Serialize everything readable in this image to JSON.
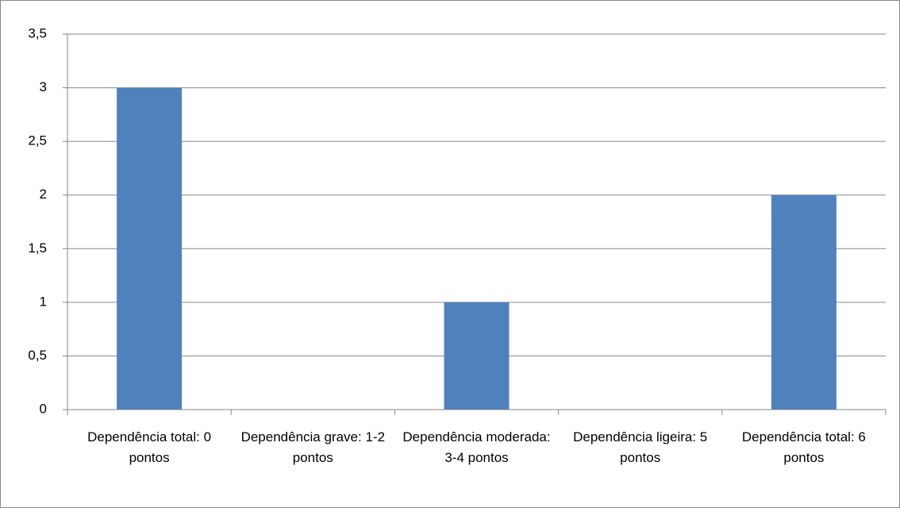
{
  "chart_data": {
    "type": "bar",
    "categories": [
      "Dependência total: 0 pontos",
      "Dependência grave: 1-2 pontos",
      "Dependência moderada: 3-4 pontos",
      "Dependência ligeira: 5 pontos",
      "Dependência total: 6 pontos"
    ],
    "values": [
      3,
      0,
      1,
      0,
      2
    ],
    "color": "#4f81bd",
    "ylim": [
      0,
      3.5
    ],
    "yticks": [
      0,
      {
        "value": 0.5,
        "label": "0,5"
      },
      1,
      {
        "value": 1.5,
        "label": "1,5"
      },
      2,
      {
        "value": 2.5,
        "label": "2,5"
      },
      3,
      {
        "value": 3.5,
        "label": "3,5"
      }
    ],
    "grid": true
  }
}
